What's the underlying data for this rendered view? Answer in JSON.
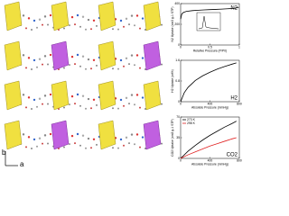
{
  "figure": {
    "axes": [
      "b",
      "a"
    ]
  },
  "chart_data": [
    {
      "type": "line",
      "annotation": "N2",
      "x_label": "Relative Pressure (P/P0)",
      "y_label": "N2 Uptake (cm3 g-1 STP)",
      "xlim": [
        0,
        1
      ],
      "xticks": [
        0,
        0.5,
        1
      ],
      "ylim": [
        0,
        400
      ],
      "yticks": [
        0,
        200,
        400
      ],
      "series": [
        {
          "name": "N2",
          "color": "#000000",
          "x": [
            0,
            0.02,
            0.05,
            0.1,
            0.2,
            0.3,
            0.4,
            0.5,
            0.6,
            0.7,
            0.8,
            0.9,
            0.95,
            0.99
          ],
          "values": [
            250,
            300,
            315,
            325,
            332,
            336,
            339,
            342,
            344,
            347,
            350,
            354,
            358,
            365
          ]
        }
      ]
    },
    {
      "type": "line",
      "annotation": "H2",
      "x_label": "Absolute Pressure (mmHg)",
      "y_label": "H2 Uptake (wt%)",
      "xlim": [
        0,
        800
      ],
      "xticks": [
        0,
        400,
        800
      ],
      "ylim": [
        0,
        1.6
      ],
      "yticks": [
        0,
        0.8,
        1.6
      ],
      "series": [
        {
          "name": "H2",
          "color": "#000000",
          "x": [
            0,
            50,
            100,
            200,
            300,
            400,
            500,
            600,
            700,
            760
          ],
          "values": [
            0,
            0.35,
            0.55,
            0.82,
            1.0,
            1.14,
            1.26,
            1.36,
            1.45,
            1.5
          ]
        }
      ]
    },
    {
      "type": "line",
      "annotation": "CO2",
      "x_label": "Absolute Pressure (mmHg)",
      "y_label": "CO2 Uptake (cm3 g-1 STP)",
      "xlim": [
        0,
        800
      ],
      "xticks": [
        0,
        400,
        800
      ],
      "ylim": [
        0,
        70
      ],
      "yticks": [
        0,
        35,
        70
      ],
      "legend": "upper left",
      "series": [
        {
          "name": "273 K",
          "color": "#000000",
          "x": [
            0,
            100,
            200,
            300,
            400,
            500,
            600,
            700,
            760
          ],
          "values": [
            0,
            12,
            22,
            31,
            39,
            46,
            53,
            59,
            63
          ]
        },
        {
          "name": "298 K",
          "color": "#e02020",
          "x": [
            0,
            100,
            200,
            300,
            400,
            500,
            600,
            700,
            760
          ],
          "values": [
            0,
            6,
            11,
            16,
            21,
            25,
            29,
            33,
            35
          ]
        }
      ]
    }
  ]
}
